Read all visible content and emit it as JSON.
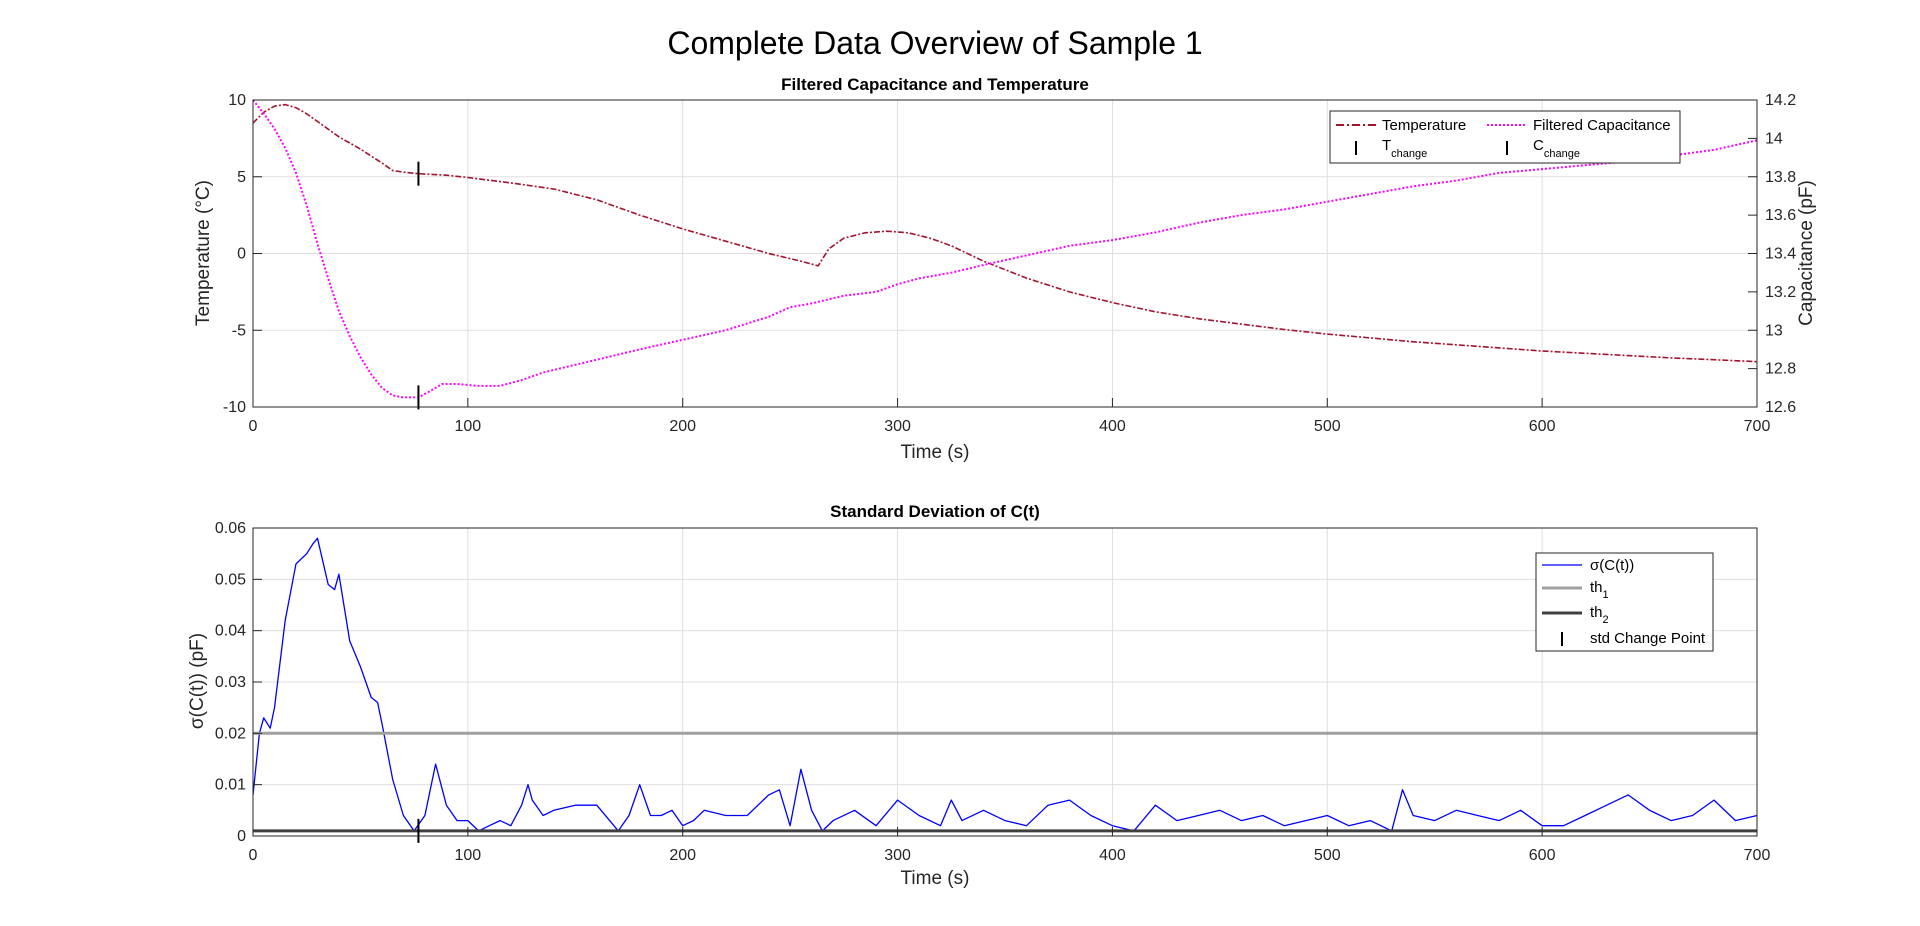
{
  "figure_title": "Complete Data Overview of Sample 1",
  "chart_data": [
    {
      "type": "line",
      "title": "Filtered Capacitance and Temperature",
      "xlabel": "Time (s)",
      "ylabel": "Temperature (°C)",
      "ylabel_right": "Capacitance (pF)",
      "xlim": [
        0,
        700
      ],
      "ylim": [
        -10,
        10
      ],
      "ylim_right": [
        12.6,
        14.2
      ],
      "xticks": [
        "0",
        "100",
        "200",
        "300",
        "400",
        "500",
        "600",
        "700"
      ],
      "yticks": [
        "-10",
        "-5",
        "0",
        "5",
        "10"
      ],
      "yticks_right": [
        "12.6",
        "12.8",
        "13",
        "13.2",
        "13.4",
        "13.6",
        "13.8",
        "14",
        "14.2"
      ],
      "grid": true,
      "legend_position": "top-right",
      "legend": [
        {
          "label": "Temperature",
          "sub": ""
        },
        {
          "label": "Filtered Capacitance",
          "sub": ""
        },
        {
          "label": "T",
          "sub": "change"
        },
        {
          "label": "C",
          "sub": "change"
        }
      ],
      "series": [
        {
          "name": "Temperature",
          "axis": "left",
          "color": "#a2142f",
          "style": "dash-dot",
          "x": [
            0,
            5,
            10,
            15,
            20,
            25,
            30,
            35,
            40,
            50,
            60,
            65,
            70,
            77,
            90,
            100,
            120,
            140,
            160,
            180,
            200,
            220,
            240,
            255,
            263,
            268,
            275,
            285,
            295,
            305,
            315,
            325,
            340,
            360,
            380,
            400,
            420,
            440,
            460,
            480,
            500,
            520,
            540,
            560,
            580,
            600,
            620,
            640,
            660,
            680,
            700
          ],
          "values": [
            8.5,
            9.2,
            9.6,
            9.7,
            9.5,
            9.1,
            8.6,
            8.1,
            7.6,
            6.8,
            5.9,
            5.4,
            5.3,
            5.2,
            5.1,
            4.95,
            4.6,
            4.2,
            3.5,
            2.5,
            1.6,
            0.8,
            0.0,
            -0.5,
            -0.8,
            0.3,
            1.0,
            1.35,
            1.45,
            1.35,
            1.0,
            0.5,
            -0.5,
            -1.6,
            -2.5,
            -3.2,
            -3.8,
            -4.25,
            -4.6,
            -4.95,
            -5.25,
            -5.5,
            -5.75,
            -5.95,
            -6.15,
            -6.35,
            -6.5,
            -6.65,
            -6.8,
            -6.92,
            -7.05
          ]
        },
        {
          "name": "Filtered Capacitance",
          "axis": "right",
          "color": "#ff00ff",
          "style": "dotted",
          "x": [
            0,
            5,
            10,
            15,
            20,
            25,
            30,
            35,
            40,
            45,
            50,
            55,
            60,
            65,
            70,
            77,
            82,
            88,
            95,
            105,
            115,
            125,
            135,
            150,
            165,
            180,
            200,
            220,
            240,
            250,
            260,
            275,
            290,
            300,
            310,
            325,
            340,
            360,
            380,
            400,
            420,
            440,
            460,
            480,
            500,
            520,
            540,
            560,
            580,
            600,
            620,
            640,
            660,
            680,
            700
          ],
          "values": [
            14.2,
            14.13,
            14.05,
            13.95,
            13.82,
            13.65,
            13.45,
            13.27,
            13.1,
            12.97,
            12.86,
            12.77,
            12.7,
            12.66,
            12.65,
            12.65,
            12.68,
            12.72,
            12.72,
            12.71,
            12.71,
            12.74,
            12.78,
            12.82,
            12.86,
            12.9,
            12.95,
            13.0,
            13.07,
            13.12,
            13.14,
            13.18,
            13.2,
            13.24,
            13.27,
            13.3,
            13.34,
            13.39,
            13.44,
            13.47,
            13.51,
            13.56,
            13.6,
            13.63,
            13.67,
            13.71,
            13.75,
            13.78,
            13.82,
            13.84,
            13.86,
            13.88,
            13.91,
            13.94,
            13.99
          ]
        }
      ],
      "change_markers": [
        {
          "name": "T change",
          "x": 77,
          "y": 5.2,
          "axis": "left"
        },
        {
          "name": "C change",
          "x": 77,
          "y": 12.65,
          "axis": "right"
        }
      ]
    },
    {
      "type": "line",
      "title": "Standard Deviation of C(t)",
      "xlabel": "Time (s)",
      "ylabel": "σ(C(t)) (pF)",
      "xlim": [
        0,
        700
      ],
      "ylim": [
        0,
        0.06
      ],
      "xticks": [
        "0",
        "100",
        "200",
        "300",
        "400",
        "500",
        "600",
        "700"
      ],
      "yticks": [
        "0",
        "0.01",
        "0.02",
        "0.03",
        "0.04",
        "0.05",
        "0.06"
      ],
      "grid": true,
      "legend_position": "top-right",
      "legend": [
        {
          "label": "σ(C(t))",
          "sub": ""
        },
        {
          "label": "th",
          "sub": "1"
        },
        {
          "label": "th",
          "sub": "2"
        },
        {
          "label": "std Change Point",
          "sub": ""
        }
      ],
      "series": [
        {
          "name": "σ(C(t))",
          "color": "#0000ff",
          "x": [
            0,
            3,
            5,
            8,
            10,
            15,
            20,
            25,
            28,
            30,
            35,
            38,
            40,
            45,
            50,
            55,
            58,
            60,
            65,
            70,
            75,
            80,
            85,
            90,
            95,
            100,
            105,
            110,
            115,
            120,
            125,
            128,
            130,
            135,
            140,
            150,
            160,
            170,
            175,
            180,
            185,
            190,
            195,
            200,
            205,
            210,
            220,
            230,
            240,
            245,
            250,
            255,
            260,
            265,
            270,
            280,
            290,
            300,
            310,
            320,
            325,
            330,
            340,
            350,
            360,
            370,
            380,
            390,
            400,
            410,
            420,
            430,
            440,
            450,
            460,
            470,
            480,
            490,
            500,
            510,
            520,
            530,
            535,
            540,
            550,
            560,
            570,
            580,
            590,
            600,
            610,
            620,
            630,
            640,
            650,
            660,
            670,
            680,
            690,
            700
          ],
          "values": [
            0.008,
            0.02,
            0.023,
            0.021,
            0.025,
            0.042,
            0.053,
            0.055,
            0.057,
            0.058,
            0.049,
            0.048,
            0.051,
            0.038,
            0.033,
            0.027,
            0.026,
            0.022,
            0.011,
            0.004,
            0.001,
            0.004,
            0.014,
            0.006,
            0.003,
            0.003,
            0.001,
            0.002,
            0.003,
            0.002,
            0.006,
            0.01,
            0.007,
            0.004,
            0.005,
            0.006,
            0.006,
            0.001,
            0.004,
            0.01,
            0.004,
            0.004,
            0.005,
            0.002,
            0.003,
            0.005,
            0.004,
            0.004,
            0.008,
            0.009,
            0.002,
            0.013,
            0.005,
            0.001,
            0.003,
            0.005,
            0.002,
            0.007,
            0.004,
            0.002,
            0.007,
            0.003,
            0.005,
            0.003,
            0.002,
            0.006,
            0.007,
            0.004,
            0.002,
            0.001,
            0.006,
            0.003,
            0.004,
            0.005,
            0.003,
            0.004,
            0.002,
            0.003,
            0.004,
            0.002,
            0.003,
            0.001,
            0.009,
            0.004,
            0.003,
            0.005,
            0.004,
            0.003,
            0.005,
            0.002,
            0.002,
            0.004,
            0.006,
            0.008,
            0.005,
            0.003,
            0.004,
            0.007,
            0.003,
            0.004
          ]
        },
        {
          "name": "th1",
          "color": "#a0a0a0",
          "x": [
            0,
            700
          ],
          "values": [
            0.02,
            0.02
          ]
        },
        {
          "name": "th2",
          "color": "#404040",
          "x": [
            0,
            700
          ],
          "values": [
            0.001,
            0.001
          ]
        }
      ],
      "change_markers": [
        {
          "name": "std Change Point",
          "x": 77,
          "y": 0.001
        }
      ]
    }
  ]
}
